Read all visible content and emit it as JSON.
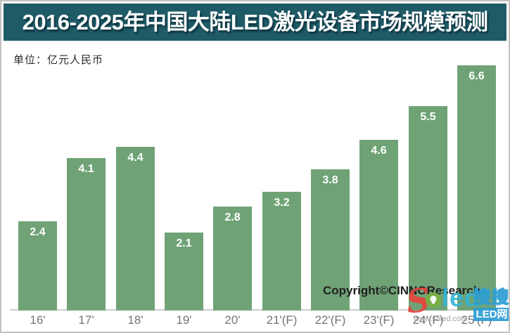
{
  "header": {
    "title": "2016-2025年中国大陆LED激光设备市场规模预测"
  },
  "unit_label": "单位：亿元人民币",
  "chart_data": {
    "type": "bar",
    "title": "2016-2025年中国大陆LED激光设备市场规模预测",
    "unit_label": "单位：亿元人民币",
    "categories": [
      "16'",
      "17'",
      "18'",
      "19'",
      "20'",
      "21'(F)",
      "22'(F)",
      "23'(F)",
      "24'(F)",
      "25'(F)"
    ],
    "values": [
      2.4,
      4.1,
      4.4,
      2.1,
      2.8,
      3.2,
      3.8,
      4.6,
      5.5,
      6.6
    ],
    "xlabel": "",
    "ylabel": "",
    "ylim": [
      0,
      7
    ],
    "grid": false,
    "legend": false,
    "bar_color": "#6fa376",
    "value_label_color": "#ffffff"
  },
  "footer": {
    "copyright": "Copyright©CINNOResearch"
  },
  "watermark": {
    "logo_s": "S",
    "logo_led": "led",
    "site_url": "www.soled.com",
    "badge_top": "搜搜",
    "badge_bottom": "LED网"
  },
  "colors": {
    "title_bar_bg": "#1e5b67",
    "title_text": "#ffffff",
    "bar_green": "#6fa376",
    "axis_line": "#cfcfcf",
    "tick_label": "#757575",
    "copyright_text": "#1f1f1f",
    "watermark_red": "#e64540",
    "watermark_cyan": "#35b5d8",
    "watermark_blue": "#2e9fd4"
  }
}
